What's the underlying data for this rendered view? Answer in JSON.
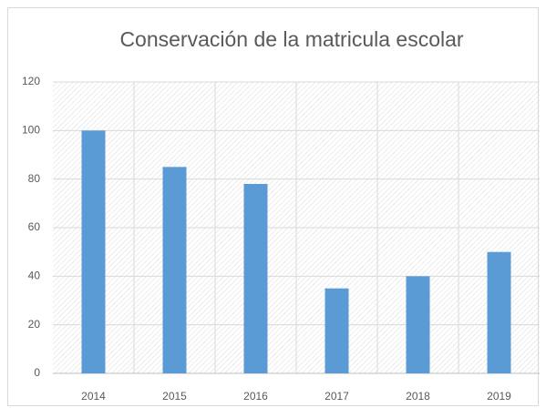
{
  "chart_data": {
    "type": "bar",
    "title": "Conservación de la matricula escolar",
    "categories": [
      "2014",
      "2015",
      "2016",
      "2017",
      "2018",
      "2019"
    ],
    "values": [
      100,
      85,
      78,
      35,
      40,
      50
    ],
    "color": "#5b9bd5",
    "ylim": [
      0,
      120
    ],
    "yticks": [
      0,
      20,
      40,
      60,
      80,
      100,
      120
    ],
    "grid": true
  }
}
